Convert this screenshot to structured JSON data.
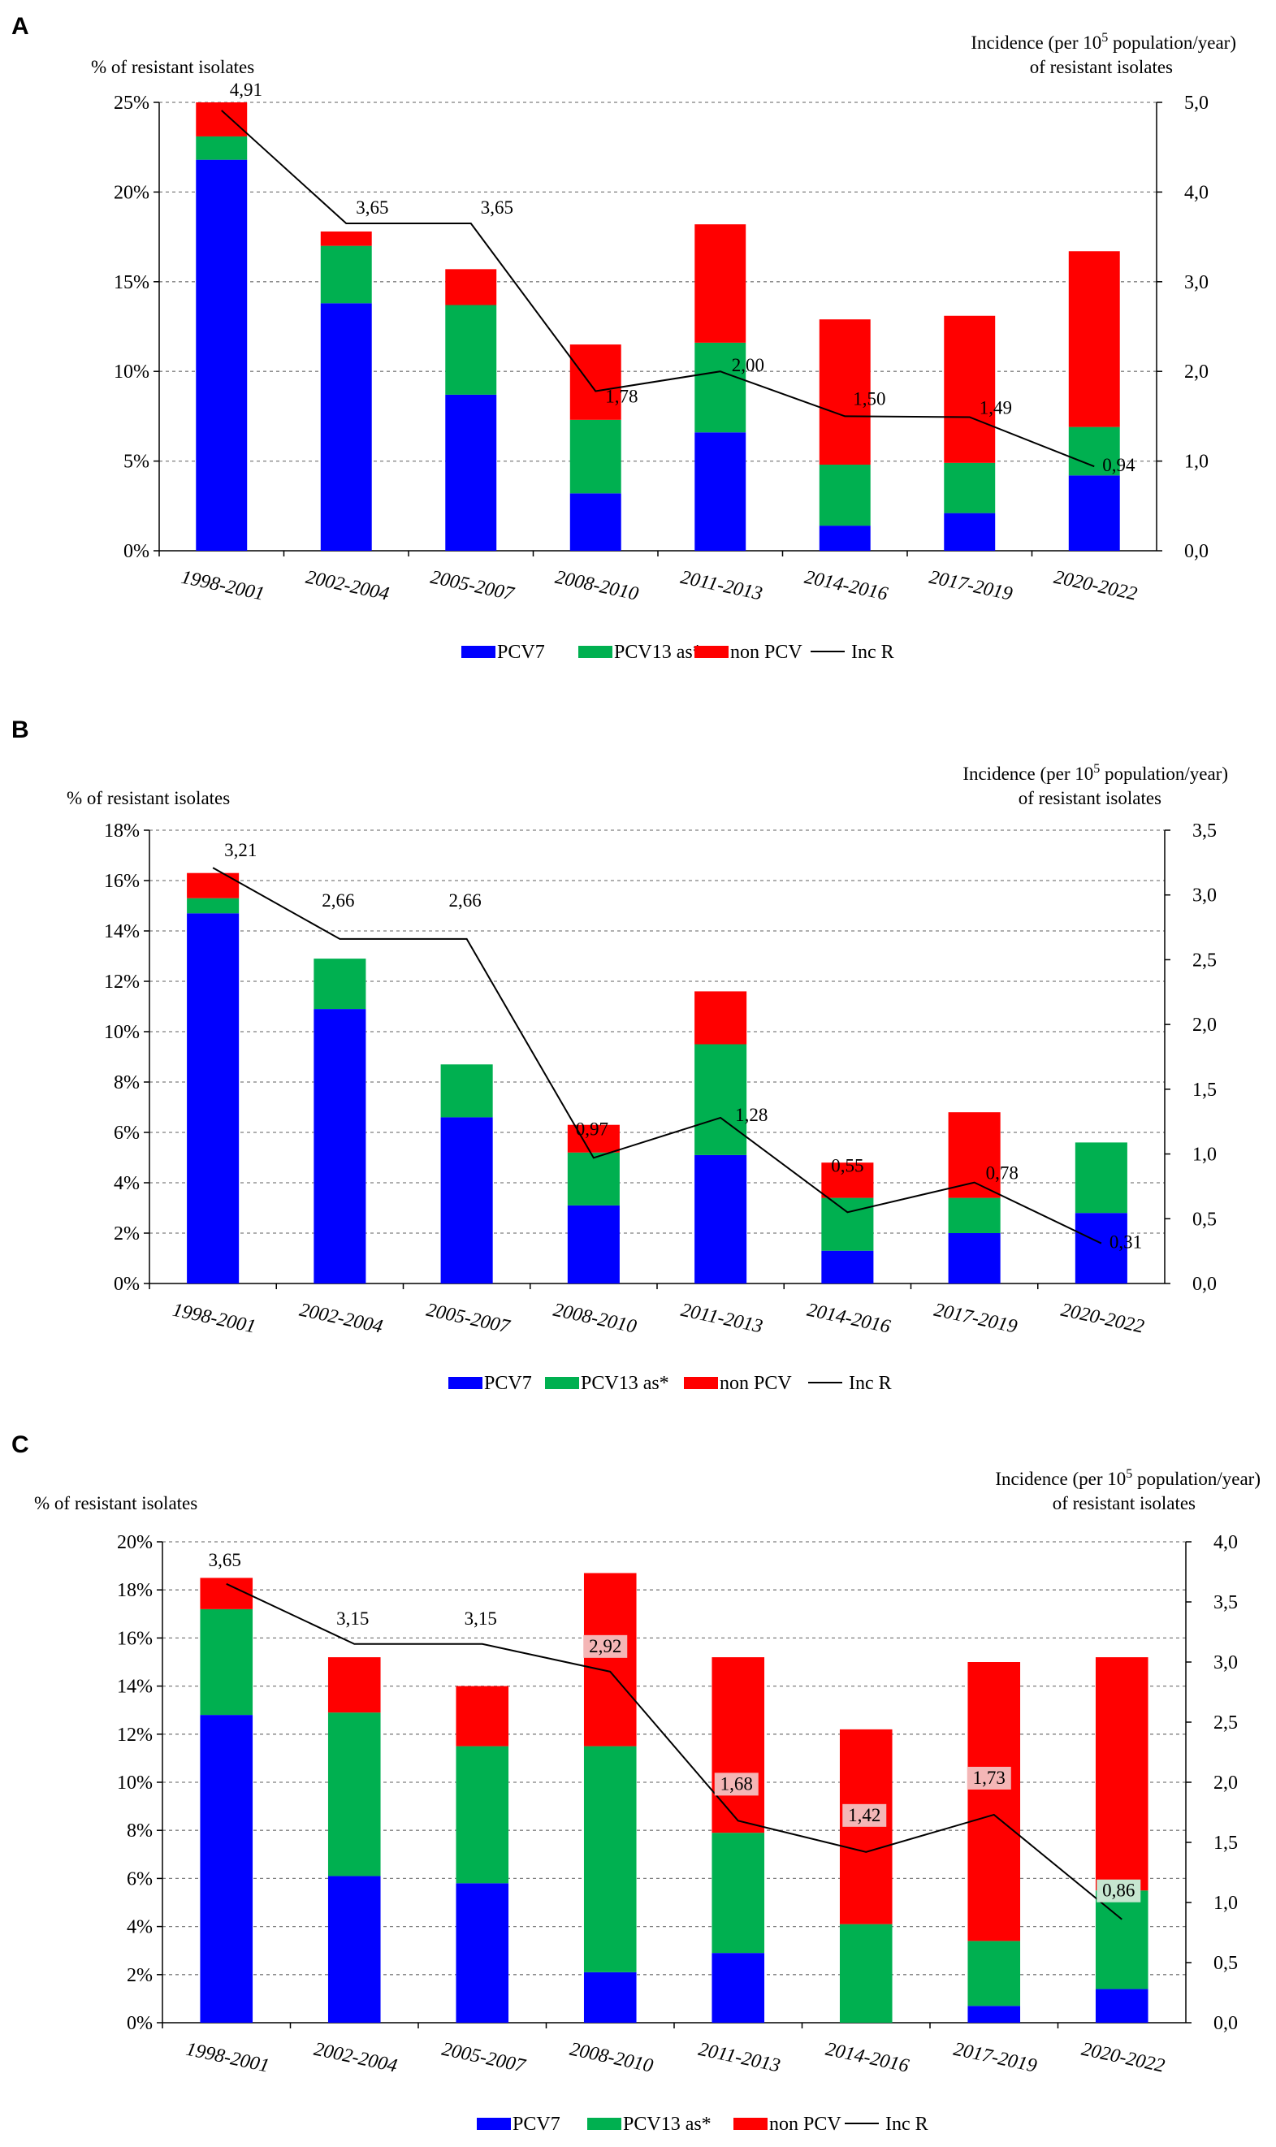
{
  "colors": {
    "pcv7": "#0000ff",
    "pcv13": "#00b050",
    "nonpcv": "#ff0000",
    "line": "#000000",
    "grid": "#7f7f7f",
    "label_bg_red": "#f4b6b6",
    "label_bg_green": "#c6e6d0"
  },
  "chart_data": [
    {
      "type": "bar",
      "stacked": true,
      "panel": "A",
      "title": "",
      "ylabel_left": "% of resistant  isolates",
      "ylabel_right_line1_pre": "Incidence  (per 10",
      "ylabel_right_sup": "5",
      "ylabel_right_line1_post": " population/year)",
      "ylabel_right_line2": "of resistant isolates",
      "categories": [
        "1998-2001",
        "2002-2004",
        "2005-2007",
        "2008-2010",
        "2011-2013",
        "2014-2016",
        "2017-2019",
        "2020-2022"
      ],
      "ylim_left": [
        0,
        25
      ],
      "yticks_left": [
        "0%",
        "5%",
        "10%",
        "15%",
        "20%",
        "25%"
      ],
      "ylim_right": [
        0,
        5
      ],
      "yticks_right": [
        "0,0",
        "1,0",
        "2,0",
        "3,0",
        "4,0",
        "5,0"
      ],
      "series": [
        {
          "name": "PCV7",
          "values": [
            21.8,
            13.8,
            8.7,
            3.2,
            6.6,
            1.4,
            2.1,
            4.2
          ]
        },
        {
          "name": "PCV13 as*",
          "values": [
            1.3,
            3.2,
            5.0,
            4.1,
            5.0,
            3.4,
            2.8,
            2.7
          ]
        },
        {
          "name": "non PCV",
          "values": [
            1.9,
            0.8,
            2.0,
            4.2,
            6.6,
            8.1,
            8.2,
            9.8
          ]
        }
      ],
      "line": {
        "name": "Inc R",
        "values": [
          4.91,
          3.65,
          3.65,
          1.78,
          2.0,
          1.5,
          1.49,
          0.94
        ],
        "labels": [
          "4,91",
          "3,65",
          "3,65",
          "1,78",
          "2,00",
          "1,50",
          "1,49",
          "0,94"
        ]
      },
      "legend": [
        "PCV7",
        "PCV13 as*",
        "non PCV",
        "Inc R"
      ],
      "legend_position": "bottom",
      "grid": true
    },
    {
      "type": "bar",
      "stacked": true,
      "panel": "B",
      "title": "",
      "ylabel_left": "% of resistant  isolates",
      "ylabel_right_line1_pre": "Incidence  (per 10",
      "ylabel_right_sup": "5",
      "ylabel_right_line1_post": " population/year)",
      "ylabel_right_line2": "of resistant isolates",
      "categories": [
        "1998-2001",
        "2002-2004",
        "2005-2007",
        "2008-2010",
        "2011-2013",
        "2014-2016",
        "2017-2019",
        "2020-2022"
      ],
      "ylim_left": [
        0,
        18
      ],
      "yticks_left": [
        "0%",
        "2%",
        "4%",
        "6%",
        "8%",
        "10%",
        "12%",
        "14%",
        "16%",
        "18%"
      ],
      "ylim_right": [
        0,
        3.5
      ],
      "yticks_right": [
        "0,0",
        "0,5",
        "1,0",
        "1,5",
        "2,0",
        "2,5",
        "3,0",
        "3,5"
      ],
      "series": [
        {
          "name": "PCV7",
          "values": [
            14.7,
            10.9,
            6.6,
            3.1,
            5.1,
            1.3,
            2.0,
            2.8
          ]
        },
        {
          "name": "PCV13 as*",
          "values": [
            0.6,
            2.0,
            2.1,
            2.1,
            4.4,
            2.1,
            1.4,
            2.8
          ]
        },
        {
          "name": "non PCV",
          "values": [
            1.0,
            0.0,
            0.0,
            1.1,
            2.1,
            1.4,
            3.4,
            0.0
          ]
        }
      ],
      "line": {
        "name": "Inc R",
        "values": [
          3.21,
          2.66,
          2.66,
          0.97,
          1.28,
          0.55,
          0.78,
          0.31
        ],
        "labels": [
          "3,21",
          "2,66",
          "2,66",
          "0,97",
          "1,28",
          "0,55",
          "0,78",
          "0,31"
        ]
      },
      "legend": [
        "PCV7",
        "PCV13 as*",
        "non PCV",
        "Inc R"
      ],
      "legend_position": "bottom",
      "grid": true
    },
    {
      "type": "bar",
      "stacked": true,
      "panel": "C",
      "title": "",
      "ylabel_left": "% of resistant  isolates",
      "ylabel_right_line1_pre": "Incidence  (per 10",
      "ylabel_right_sup": "5",
      "ylabel_right_line1_post": " population/year)",
      "ylabel_right_line2": "of resistant isolates",
      "categories": [
        "1998-2001",
        "2002-2004",
        "2005-2007",
        "2008-2010",
        "2011-2013",
        "2014-2016",
        "2017-2019",
        "2020-2022"
      ],
      "ylim_left": [
        0,
        20
      ],
      "yticks_left": [
        "0%",
        "2%",
        "4%",
        "6%",
        "8%",
        "10%",
        "12%",
        "14%",
        "16%",
        "18%",
        "20%"
      ],
      "ylim_right": [
        0,
        4
      ],
      "yticks_right": [
        "0,0",
        "0,5",
        "1,0",
        "1,5",
        "2,0",
        "2,5",
        "3,0",
        "3,5",
        "4,0"
      ],
      "series": [
        {
          "name": "PCV7",
          "values": [
            12.8,
            6.1,
            5.8,
            2.1,
            2.9,
            0.0,
            0.7,
            1.4
          ]
        },
        {
          "name": "PCV13 as*",
          "values": [
            4.4,
            6.8,
            5.7,
            9.4,
            5.0,
            4.1,
            2.7,
            4.1
          ]
        },
        {
          "name": "non PCV",
          "values": [
            1.3,
            2.3,
            2.5,
            7.2,
            7.3,
            8.1,
            11.6,
            9.7
          ]
        }
      ],
      "line": {
        "name": "Inc R",
        "values": [
          3.65,
          3.15,
          3.15,
          2.92,
          1.68,
          1.42,
          1.73,
          0.86
        ],
        "labels": [
          "3,65",
          "3,15",
          "3,15",
          "2,92",
          "1,68",
          "1,42",
          "1,73",
          "0,86"
        ]
      },
      "legend": [
        "PCV7",
        "PCV13 as*",
        "non PCV",
        "Inc R"
      ],
      "legend_position": "bottom",
      "grid": true
    }
  ]
}
